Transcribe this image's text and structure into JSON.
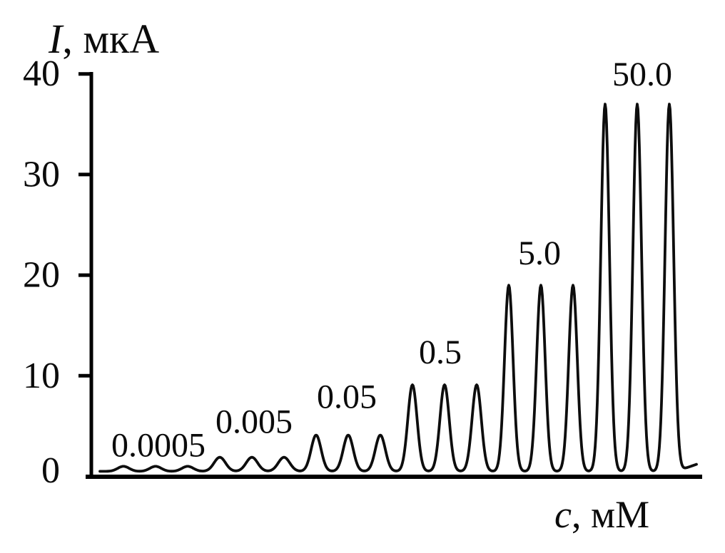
{
  "figure": {
    "background_color": "#ffffff",
    "ink_color": "#0b0b0b",
    "description": "Signal peaks (triplicate) at increasing analyte concentrations"
  },
  "chart_data": {
    "type": "line",
    "title": "",
    "ylabel": "I, мкА",
    "xlabel": "c, мМ",
    "ylabel_parts": {
      "symbol": "I",
      "suffix": ", мкА"
    },
    "xlabel_parts": {
      "symbol": "c",
      "suffix": ", мМ"
    },
    "y_ticks": [
      0,
      10,
      20,
      30,
      40
    ],
    "ylim": [
      0,
      40
    ],
    "grid": false,
    "legend": "none",
    "baseline_uA": 0.5,
    "peaks_per_group": 3,
    "groups": [
      {
        "label": "0.0005",
        "concentration_mM": 0.0005,
        "replicates": 3,
        "peak_current_uA": 1.0
      },
      {
        "label": "0.005",
        "concentration_mM": 0.005,
        "replicates": 3,
        "peak_current_uA": 1.9
      },
      {
        "label": "0.05",
        "concentration_mM": 0.05,
        "replicates": 3,
        "peak_current_uA": 4.1
      },
      {
        "label": "0.5",
        "concentration_mM": 0.5,
        "replicates": 3,
        "peak_current_uA": 9.1
      },
      {
        "label": "5.0",
        "concentration_mM": 5.0,
        "replicates": 3,
        "peak_current_uA": 19.0
      },
      {
        "label": "50.0",
        "concentration_mM": 50.0,
        "replicates": 3,
        "peak_current_uA": 37.0
      }
    ],
    "end_tail_uA": 0.7
  }
}
